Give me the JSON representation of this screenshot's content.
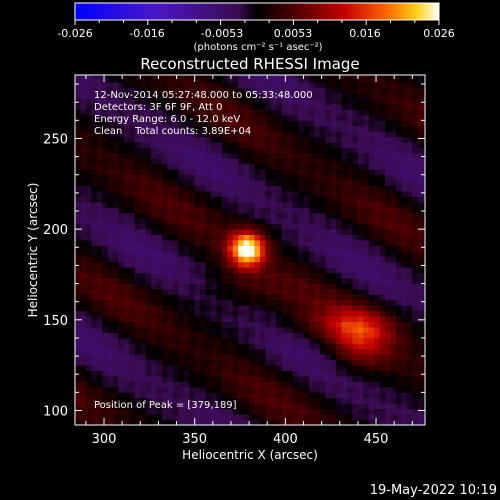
{
  "chart_data": {
    "type": "heatmap",
    "title": "Reconstructed RHESSI Image",
    "xlabel": "Heliocentric X (arcsec)",
    "ylabel": "Heliocentric Y (arcsec)",
    "xlim": [
      284,
      477
    ],
    "ylim": [
      92,
      285
    ],
    "xticks": [
      300,
      350,
      400,
      450
    ],
    "yticks": [
      100,
      150,
      200,
      250
    ],
    "colorbar": {
      "colormap": "IDL color table 3 (red temperature) with blue-violet negative range",
      "range": [
        -0.026,
        0.026
      ],
      "ticks": [
        "-0.026",
        "-0.016",
        "-0.0053",
        "0.0053",
        "0.016",
        "0.026"
      ],
      "units_label": "(photons cm⁻² s⁻¹ asec⁻²)"
    },
    "annotations": [
      "12-Nov-2014 05:27:48.000 to 05:33:48.000",
      "Detectors: 3F 6F 9F, Att 0",
      "Energy Range: 6.0 - 12.0 keV",
      "Clean    Total counts: 3.89E+04"
    ],
    "peak_label": "Position of Peak = [379,189]",
    "peak": {
      "x": 379,
      "y": 189
    },
    "timestamp": "19-May-2022 10:19",
    "sources": [
      {
        "x": 379,
        "y": 189,
        "sigma": 7,
        "value": 0.026
      },
      {
        "x": 441,
        "y": 140,
        "sigma": 12,
        "value": 0.01
      }
    ],
    "background_pattern": "diagonal alternating positive/negative stripes (clean residuals)"
  },
  "colors": {
    "background": "#000000",
    "text": "#ffffff"
  }
}
